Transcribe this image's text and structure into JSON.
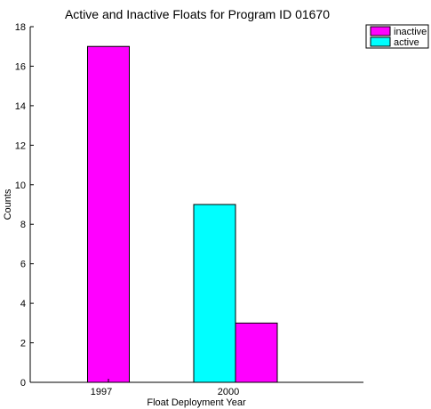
{
  "chart_data": {
    "type": "bar",
    "title": "Active and Inactive Floats for Program ID 01670",
    "xlabel": "Float Deployment Year",
    "ylabel": "Counts",
    "ylim": [
      0,
      18
    ],
    "yticks": [
      0,
      2,
      4,
      6,
      8,
      10,
      12,
      14,
      16,
      18
    ],
    "categories": [
      "1997",
      "2000"
    ],
    "series": [
      {
        "name": "active",
        "values": [
          0,
          9
        ],
        "color": "#00ffff"
      },
      {
        "name": "inactive",
        "values": [
          17,
          3
        ],
        "color": "#ff00ff"
      }
    ],
    "legend": {
      "position": "top-right",
      "entries": [
        {
          "label": "inactive",
          "color": "#ff00ff"
        },
        {
          "label": "active",
          "color": "#00ffff"
        }
      ]
    },
    "grid": false
  }
}
